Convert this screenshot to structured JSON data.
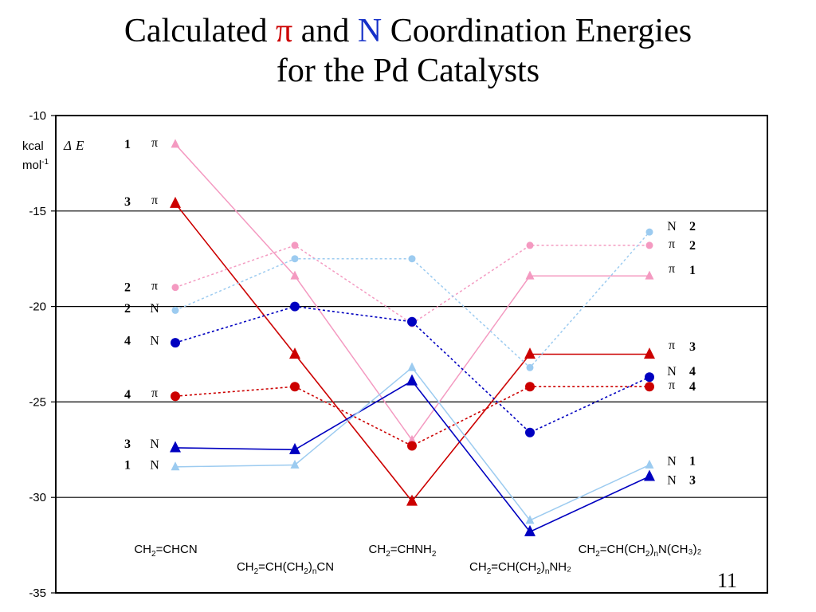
{
  "title": {
    "part1": "Calculated ",
    "pi": "π",
    "part2": " and ",
    "n": "N",
    "part3": " Coordination Energies",
    "line2": "for the Pd Catalysts"
  },
  "slide_number": "11",
  "chart_data": {
    "type": "line",
    "ylim": [
      -35,
      -10
    ],
    "yticks": [
      "-10",
      "-15",
      "-20",
      "-25",
      "-30",
      "-35"
    ],
    "ytick_values": [
      -10,
      -15,
      -20,
      -25,
      -30,
      -35
    ],
    "ylabel": {
      "kcal": "kcal",
      "mol": "mol",
      "mol_exp": "-1",
      "delta": "Δ",
      "e": "E"
    },
    "grid": true,
    "categories": [
      {
        "base": "CH",
        "s1": "2",
        "mid": "=CHCN",
        "s2": "",
        "tail": "",
        "s3": "",
        "end": "",
        "row": 0
      },
      {
        "base": "CH",
        "s1": "2",
        "mid": "=CH(CH",
        "s2": "2",
        "tail": ")",
        "s3": "n",
        "end": "CN",
        "row": 1
      },
      {
        "base": "CH",
        "s1": "2",
        "mid": "=CHNH",
        "s2": "2",
        "tail": "",
        "s3": "",
        "end": "",
        "row": 0
      },
      {
        "base": "CH",
        "s1": "2",
        "mid": "=CH(CH",
        "s2": "2",
        "tail": ")",
        "s3": "n",
        "end": "NH₂",
        "row": 1
      },
      {
        "base": "CH",
        "s1": "2",
        "mid": "=CH(CH",
        "s2": "2",
        "tail": ")",
        "s3": "n",
        "end": "N(CH₃)₂",
        "row": 0
      }
    ],
    "series": [
      {
        "catalyst": "1",
        "mode": "π",
        "color": "#f49ac1",
        "dash": false,
        "marker": "triangle",
        "size": "small",
        "values": [
          -11.5,
          -18.4,
          -27.0,
          -18.4,
          -18.4
        ]
      },
      {
        "catalyst": "3",
        "mode": "π",
        "color": "#cc0000",
        "dash": false,
        "marker": "triangle",
        "size": "large",
        "values": [
          -14.6,
          -22.5,
          -30.2,
          -22.5,
          -22.5
        ]
      },
      {
        "catalyst": "2",
        "mode": "π",
        "color": "#f49ac1",
        "dash": true,
        "marker": "circle",
        "size": "small",
        "values": [
          -19.0,
          -16.8,
          -20.9,
          -16.8,
          -16.8
        ]
      },
      {
        "catalyst": "2",
        "mode": "N",
        "color": "#9ccbf0",
        "dash": true,
        "marker": "circle",
        "size": "small",
        "values": [
          -20.2,
          -17.5,
          -17.5,
          -23.2,
          -16.1
        ]
      },
      {
        "catalyst": "4",
        "mode": "N",
        "color": "#0000c0",
        "dash": true,
        "marker": "circle",
        "size": "large",
        "values": [
          -21.9,
          -20.0,
          -20.8,
          -26.6,
          -23.7
        ]
      },
      {
        "catalyst": "4",
        "mode": "π",
        "color": "#cc0000",
        "dash": true,
        "marker": "circle",
        "size": "large",
        "values": [
          -24.7,
          -24.2,
          -27.3,
          -24.2,
          -24.2
        ]
      },
      {
        "catalyst": "3",
        "mode": "N",
        "color": "#0000c0",
        "dash": false,
        "marker": "triangle",
        "size": "large",
        "values": [
          -27.4,
          -27.5,
          -23.9,
          -31.8,
          -28.9
        ]
      },
      {
        "catalyst": "1",
        "mode": "N",
        "color": "#9ccbf0",
        "dash": false,
        "marker": "triangle",
        "size": "small",
        "values": [
          -28.4,
          -28.3,
          -23.2,
          -31.2,
          -28.3
        ]
      }
    ],
    "labels_left": [
      {
        "num": "1",
        "sym": "π",
        "y": -11.5
      },
      {
        "num": "3",
        "sym": "π",
        "y": -14.5
      },
      {
        "num": "2",
        "sym": "π",
        "y": -19.0
      },
      {
        "num": "2",
        "sym": "N",
        "y": -20.1
      },
      {
        "num": "4",
        "sym": "N",
        "y": -21.8
      },
      {
        "num": "4",
        "sym": "π",
        "y": -24.6
      },
      {
        "num": "3",
        "sym": "N",
        "y": -27.2
      },
      {
        "num": "1",
        "sym": "N",
        "y": -28.3
      }
    ],
    "labels_right": [
      {
        "sym": "N",
        "num": "2",
        "y": -15.8
      },
      {
        "sym": "π",
        "num": "2",
        "y": -16.8
      },
      {
        "sym": "π",
        "num": "1",
        "y": -18.1
      },
      {
        "sym": "π",
        "num": "3",
        "y": -22.1
      },
      {
        "sym": "N",
        "num": "4",
        "y": -23.4
      },
      {
        "sym": "π",
        "num": "4",
        "y": -24.2
      },
      {
        "sym": "N",
        "num": "1",
        "y": -28.1
      },
      {
        "sym": "N",
        "num": "3",
        "y": -29.1
      }
    ]
  }
}
